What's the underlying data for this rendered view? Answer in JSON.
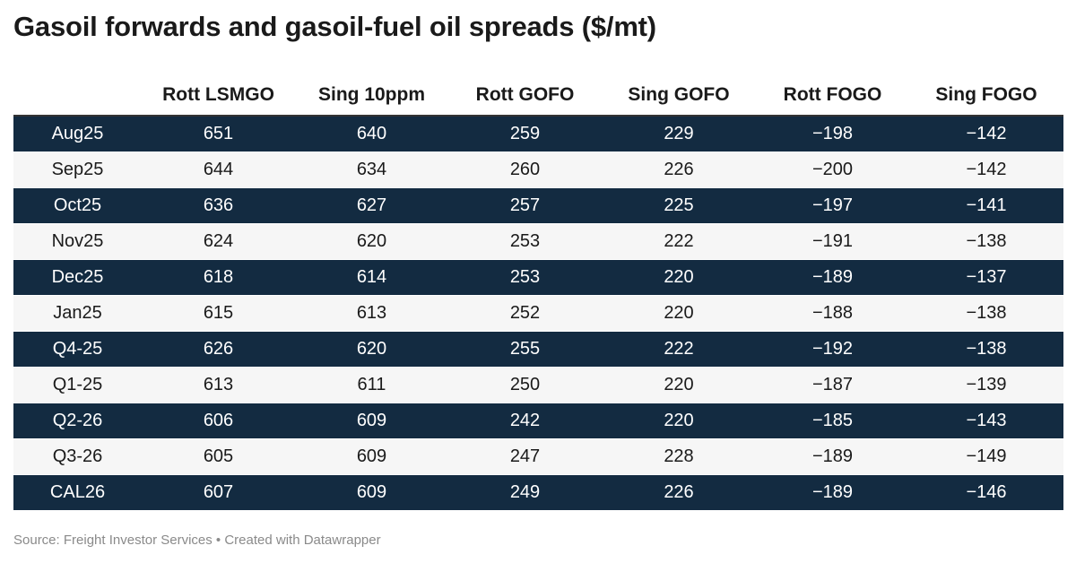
{
  "title": "Gasoil forwards and gasoil-fuel oil spreads ($/mt)",
  "footer": "Source: Freight Investor Services • Created with Datawrapper",
  "colors": {
    "dark_row": "#132b41",
    "light_row": "#f6f6f6"
  },
  "chart_data": {
    "type": "table",
    "title": "Gasoil forwards and gasoil-fuel oil spreads ($/mt)",
    "columns": [
      "",
      "Rott LSMGO",
      "Sing 10ppm",
      "Rott GOFO",
      "Sing GOFO",
      "Rott FOGO",
      "Sing FOGO"
    ],
    "rows": [
      [
        "Aug25",
        "651",
        "640",
        "259",
        "229",
        "−198",
        "−142"
      ],
      [
        "Sep25",
        "644",
        "634",
        "260",
        "226",
        "−200",
        "−142"
      ],
      [
        "Oct25",
        "636",
        "627",
        "257",
        "225",
        "−197",
        "−141"
      ],
      [
        "Nov25",
        "624",
        "620",
        "253",
        "222",
        "−191",
        "−138"
      ],
      [
        "Dec25",
        "618",
        "614",
        "253",
        "220",
        "−189",
        "−137"
      ],
      [
        "Jan25",
        "615",
        "613",
        "252",
        "220",
        "−188",
        "−138"
      ],
      [
        "Q4-25",
        "626",
        "620",
        "255",
        "222",
        "−192",
        "−138"
      ],
      [
        "Q1-25",
        "613",
        "611",
        "250",
        "220",
        "−187",
        "−139"
      ],
      [
        "Q2-26",
        "606",
        "609",
        "242",
        "220",
        "−185",
        "−143"
      ],
      [
        "Q3-26",
        "605",
        "609",
        "247",
        "228",
        "−189",
        "−149"
      ],
      [
        "CAL26",
        "607",
        "609",
        "249",
        "226",
        "−189",
        "−146"
      ]
    ]
  }
}
